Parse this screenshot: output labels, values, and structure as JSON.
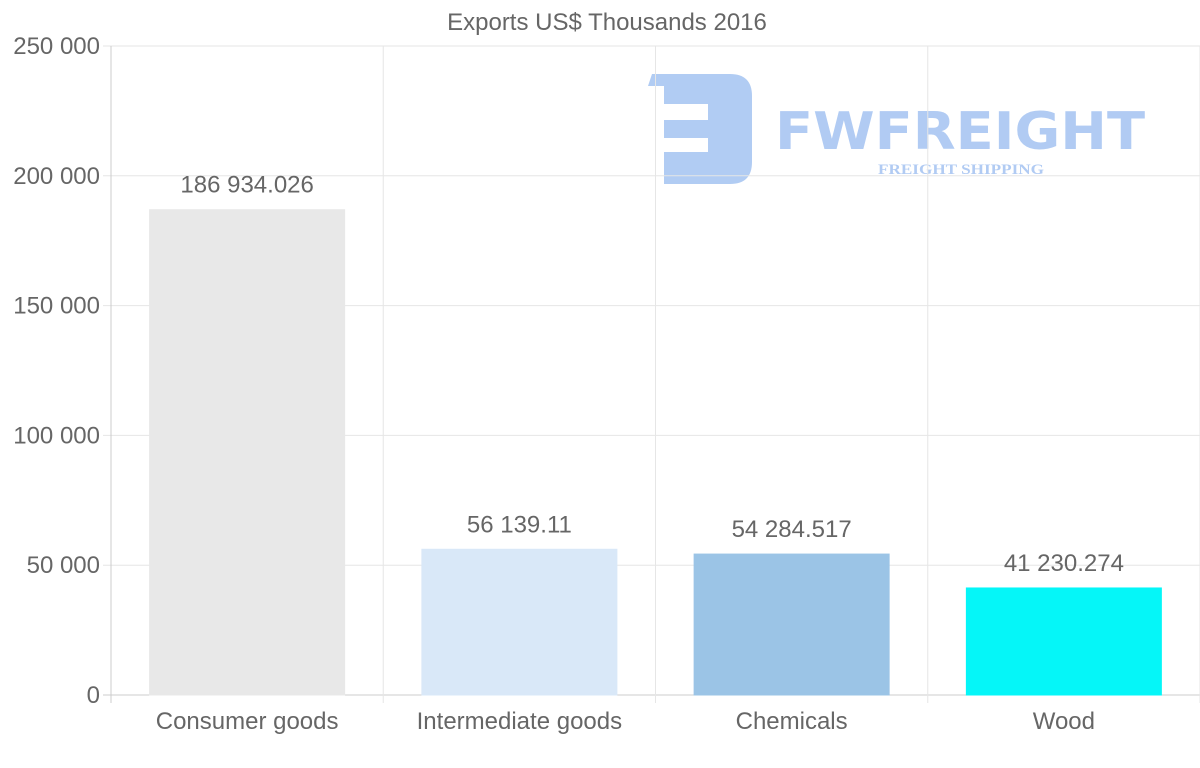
{
  "chart_data": {
    "type": "bar",
    "title": "Exports US$ Thousands 2016",
    "categories": [
      "Consumer goods",
      "Intermediate goods",
      "Chemicals",
      "Wood"
    ],
    "values": [
      186934.026,
      56139.11,
      54284.517,
      41230.274
    ],
    "data_labels": [
      "186 934.026",
      "56 139.11",
      "54 284.517",
      "41 230.274"
    ],
    "colors": [
      "#e8e8e8",
      "#d9e8f8",
      "#9bc4e6",
      "#05f6f8"
    ],
    "ylim": [
      0,
      250000
    ],
    "yticks": [
      0,
      50000,
      100000,
      150000,
      200000,
      250000
    ],
    "ytick_labels": [
      "0",
      "50 000",
      "100 000",
      "150 000",
      "200 000",
      "250 000"
    ],
    "xlabel": "",
    "ylabel": "",
    "grid": true,
    "legend": "none"
  },
  "watermark": {
    "brand": "FWFREIGHT",
    "tagline": "FREIGHT SHIPPING"
  }
}
